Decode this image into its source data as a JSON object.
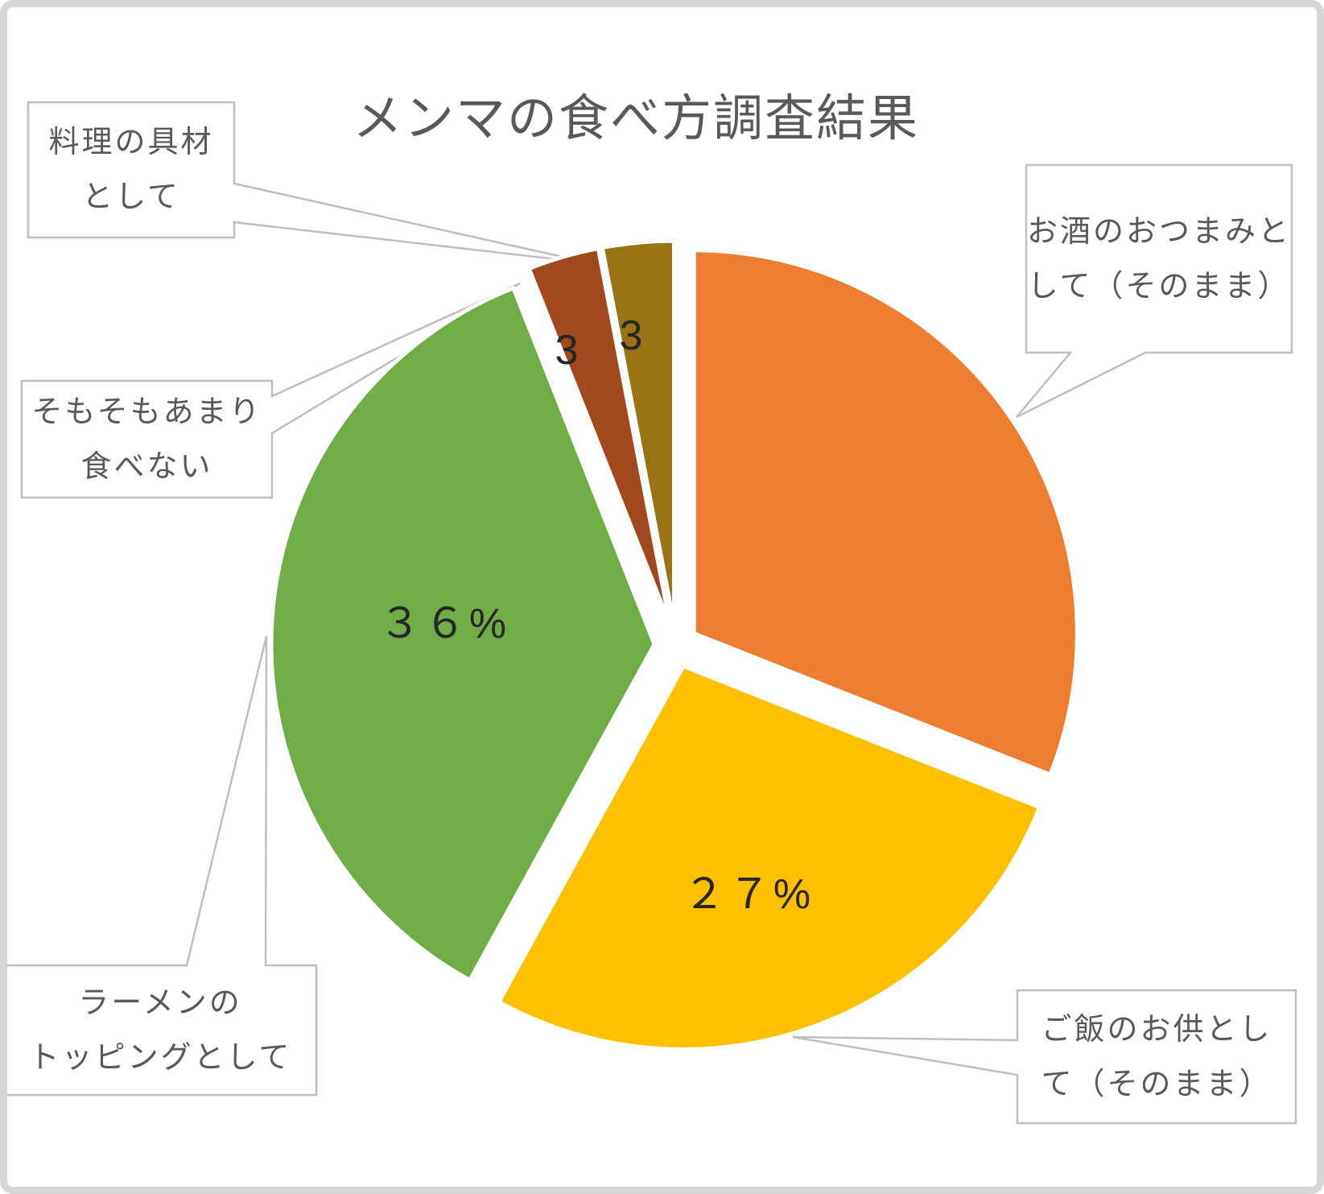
{
  "title": "メンマの食べ方調査結果",
  "chart_data": {
    "type": "pie",
    "title": "メンマの食べ方調査結果",
    "start_angle_deg": 0,
    "direction": "clockwise",
    "exploded": true,
    "legend": "none",
    "slices": [
      {
        "label": "お酒のおつまみとして（そのまま）",
        "value": 31,
        "color": "#ED7D31",
        "data_label": ""
      },
      {
        "label": "ご飯のお供として（そのまま）",
        "value": 27,
        "color": "#FFC000",
        "data_label": "２７%"
      },
      {
        "label": "ラーメンのトッピングとして",
        "value": 36,
        "color": "#70AD47",
        "data_label": "３６%"
      },
      {
        "label": "そもそもあまり食べない",
        "value": 3,
        "color": "#A0491E",
        "data_label": "3"
      },
      {
        "label": "料理の具材として",
        "value": 3,
        "color": "#9A7414",
        "data_label": "3"
      }
    ],
    "callouts": [
      {
        "lines": [
          "料理の具材",
          "として"
        ],
        "target": "料理の具材として"
      },
      {
        "lines": [
          "そもそもあまり",
          "食べない"
        ],
        "target": "そもそもあまり食べない"
      },
      {
        "lines": [
          "ラーメンの",
          "トッピングとして"
        ],
        "target": "ラーメンのトッピングとして"
      },
      {
        "lines": [
          "お酒のおつまみと",
          "して（そのまま）"
        ],
        "target": "お酒のおつまみとして（そのまま）"
      },
      {
        "lines": [
          "ご飯のお供とし",
          "て（そのまま）"
        ],
        "target": "ご飯のお供として（そのまま）"
      }
    ],
    "colors": {
      "callout_border": "#BFBFBF",
      "callout_fill": "#FFFFFF",
      "callout_text": "#595959",
      "title_text": "#595959",
      "label_text": "#262626",
      "slice_gap": "#FFFFFF",
      "frame": "#D6D6D6",
      "background": "#FFFFFF"
    }
  }
}
